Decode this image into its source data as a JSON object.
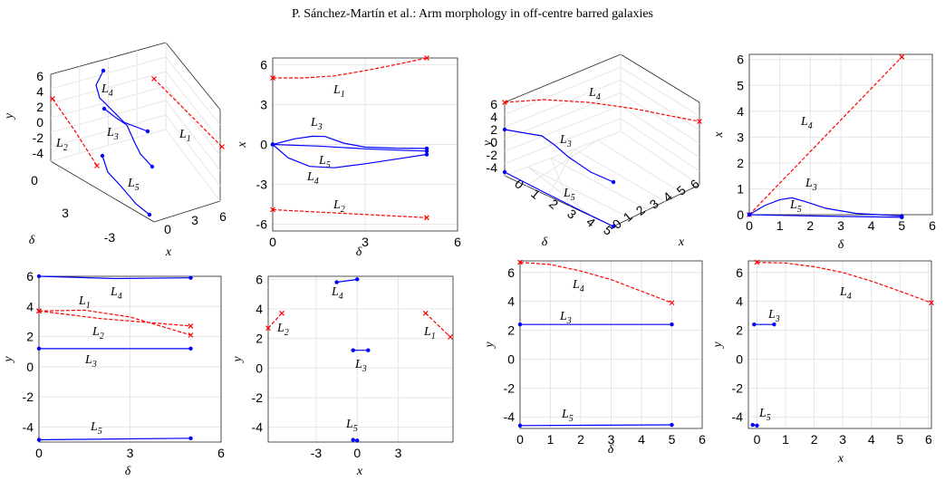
{
  "header": "P. Sánchez-Martín et al.: Arm morphology in off-centre barred galaxies",
  "colors": {
    "blue": "#0000ff",
    "red": "#ff0000",
    "grid": "#e6e6e6",
    "axis": "#262626"
  },
  "chart_data": [
    {
      "type": "line",
      "projection": "3d",
      "id": "p1",
      "xlabel": "x",
      "ylabel": "δ",
      "zlabel": "y",
      "xticks": [
        "-3",
        "0",
        "3",
        "6"
      ],
      "yticks": [
        "0",
        "3"
      ],
      "zticks": [
        "6",
        "4",
        "2",
        "0",
        "-2",
        "-4"
      ],
      "labels": [
        "L4",
        "L3",
        "L2",
        "L5",
        "L1"
      ]
    },
    {
      "type": "line",
      "id": "p2",
      "xlabel": "δ",
      "ylabel": "x",
      "xlim": [
        0,
        6
      ],
      "ylim": [
        -6.5,
        6.5
      ],
      "xticks": [
        "0",
        "3",
        "6"
      ],
      "yticks": [
        "6",
        "3",
        "0",
        "-3",
        "-6"
      ],
      "grid": true,
      "series": [
        {
          "name": "L1",
          "color": "red",
          "dash": true,
          "x": [
            0,
            1,
            2,
            3,
            4,
            5
          ],
          "y": [
            5.0,
            5.0,
            5.15,
            5.55,
            6.0,
            6.5
          ]
        },
        {
          "name": "L3",
          "color": "blue",
          "x": [
            0,
            0.7,
            1.3,
            1.7,
            2.3,
            3,
            4,
            5
          ],
          "y": [
            0,
            0.42,
            0.62,
            0.6,
            0.1,
            -0.2,
            -0.28,
            -0.3
          ]
        },
        {
          "name": "L5",
          "color": "blue",
          "x": [
            0,
            1.5,
            3,
            4,
            5
          ],
          "y": [
            0,
            -0.12,
            -0.33,
            -0.42,
            -0.5
          ]
        },
        {
          "name": "L4",
          "color": "blue",
          "x": [
            0,
            0.5,
            1.2,
            2,
            3,
            4,
            5
          ],
          "y": [
            0,
            -1.0,
            -1.65,
            -1.75,
            -1.45,
            -1.1,
            -0.75
          ]
        },
        {
          "name": "L2",
          "color": "red",
          "dash": true,
          "x": [
            0,
            2.5,
            5
          ],
          "y": [
            -4.9,
            -5.2,
            -5.5
          ]
        }
      ],
      "labels": [
        "L1",
        "L3",
        "L5",
        "L4",
        "L2"
      ]
    },
    {
      "type": "line",
      "projection": "3d",
      "id": "p3",
      "xlabel": "x",
      "ylabel": "δ",
      "zlabel": "y",
      "xticks": [
        "6",
        "5",
        "4",
        "3",
        "2",
        "1",
        "0"
      ],
      "yticks": [
        "0",
        "1",
        "2",
        "3",
        "4",
        "5"
      ],
      "zticks": [
        "6",
        "4",
        "2",
        "0",
        "-2",
        "-4"
      ],
      "labels": [
        "L4",
        "L3",
        "L5"
      ]
    },
    {
      "type": "line",
      "id": "p4",
      "xlabel": "δ",
      "ylabel": "x",
      "xlim": [
        0,
        6
      ],
      "ylim": [
        0,
        6.2
      ],
      "xticks": [
        "0",
        "1",
        "2",
        "3",
        "4",
        "5",
        "6"
      ],
      "yticks": [
        "0",
        "1",
        "2",
        "3",
        "4",
        "5",
        "6"
      ],
      "grid": true,
      "series": [
        {
          "name": "L4",
          "color": "red",
          "dash": true,
          "x": [
            0,
            5
          ],
          "y": [
            0,
            6.1
          ]
        },
        {
          "name": "L3",
          "color": "blue",
          "x": [
            0,
            0.5,
            1,
            1.4,
            1.8,
            2.5,
            3.5,
            5
          ],
          "y": [
            0,
            0.35,
            0.58,
            0.65,
            0.52,
            0.25,
            0.05,
            -0.05
          ]
        },
        {
          "name": "L5",
          "color": "blue",
          "x": [
            0,
            2,
            5
          ],
          "y": [
            0,
            -0.05,
            -0.1
          ]
        }
      ],
      "labels": [
        "L4",
        "L3",
        "L5"
      ]
    },
    {
      "type": "line",
      "id": "p5",
      "xlabel": "δ",
      "ylabel": "y",
      "xlim": [
        0,
        6
      ],
      "ylim": [
        -5,
        6
      ],
      "xticks": [
        "0",
        "3",
        "6"
      ],
      "yticks": [
        "6",
        "4",
        "2",
        "0",
        "-2",
        "-4"
      ],
      "grid": true,
      "series": [
        {
          "name": "L4",
          "color": "blue",
          "x": [
            0,
            2.5,
            5
          ],
          "y": [
            6.0,
            5.85,
            5.9
          ]
        },
        {
          "name": "L1",
          "color": "red",
          "dash": true,
          "x": [
            0,
            1.5,
            3,
            5
          ],
          "y": [
            3.7,
            3.75,
            3.3,
            2.1
          ]
        },
        {
          "name": "L2",
          "color": "red",
          "dash": true,
          "x": [
            0,
            2,
            5
          ],
          "y": [
            3.7,
            3.2,
            2.7
          ]
        },
        {
          "name": "L3",
          "color": "blue",
          "x": [
            0,
            5
          ],
          "y": [
            1.2,
            1.2
          ]
        },
        {
          "name": "L5",
          "color": "blue",
          "x": [
            0,
            5
          ],
          "y": [
            -4.85,
            -4.75
          ]
        }
      ],
      "labels": [
        "L4",
        "L1",
        "L2",
        "L3",
        "L5"
      ]
    },
    {
      "type": "line",
      "id": "p6",
      "xlabel": "x",
      "ylabel": "y",
      "xlim": [
        -6.5,
        7
      ],
      "ylim": [
        -5,
        6.2
      ],
      "xticks": [
        "-3",
        "0",
        "3"
      ],
      "yticks": [
        "6",
        "4",
        "2",
        "0",
        "-2",
        "-4"
      ],
      "grid": true,
      "series": [
        {
          "name": "L4",
          "color": "blue",
          "x": [
            -1.5,
            -0.3,
            0
          ],
          "y": [
            5.8,
            5.95,
            6.0
          ]
        },
        {
          "name": "L2",
          "color": "red",
          "dash": true,
          "x": [
            -6.5,
            -5.5
          ],
          "y": [
            2.7,
            3.7
          ]
        },
        {
          "name": "L1",
          "color": "red",
          "dash": true,
          "x": [
            5,
            6.8
          ],
          "y": [
            3.7,
            2.1
          ]
        },
        {
          "name": "L3",
          "color": "blue",
          "x": [
            -0.3,
            0.8
          ],
          "y": [
            1.2,
            1.2
          ]
        },
        {
          "name": "L5",
          "color": "blue",
          "x": [
            -0.3,
            0
          ],
          "y": [
            -4.85,
            -4.9
          ]
        }
      ],
      "labels": [
        "L4",
        "L2",
        "L1",
        "L3",
        "L5"
      ]
    },
    {
      "type": "line",
      "id": "p7",
      "xlabel": "δ",
      "ylabel": "y",
      "xlim": [
        0,
        6
      ],
      "ylim": [
        -4.8,
        6.8
      ],
      "xticks": [
        "0",
        "1",
        "2",
        "3",
        "4",
        "5",
        "6"
      ],
      "yticks": [
        "6",
        "4",
        "2",
        "0",
        "-2",
        "-4"
      ],
      "grid": true,
      "series": [
        {
          "name": "L4",
          "color": "red",
          "dash": true,
          "x": [
            0,
            1,
            2,
            3,
            4,
            5
          ],
          "y": [
            6.7,
            6.55,
            6.1,
            5.5,
            4.7,
            3.9
          ]
        },
        {
          "name": "L3",
          "color": "blue",
          "x": [
            0,
            5
          ],
          "y": [
            2.4,
            2.4
          ]
        },
        {
          "name": "L5",
          "color": "blue",
          "x": [
            0,
            5
          ],
          "y": [
            -4.6,
            -4.55
          ]
        }
      ],
      "labels": [
        "L4",
        "L3",
        "L5"
      ]
    },
    {
      "type": "line",
      "id": "p8",
      "xlabel": "x",
      "ylabel": "y",
      "xlim": [
        -0.3,
        6.1
      ],
      "ylim": [
        -4.8,
        6.8
      ],
      "xticks": [
        "0",
        "1",
        "2",
        "3",
        "4",
        "5",
        "6"
      ],
      "yticks": [
        "6",
        "4",
        "2",
        "0",
        "-2",
        "-4"
      ],
      "grid": true,
      "series": [
        {
          "name": "L4",
          "color": "red",
          "dash": true,
          "x": [
            0,
            1,
            2,
            3,
            4,
            5,
            6.1
          ],
          "y": [
            6.7,
            6.65,
            6.4,
            6.0,
            5.4,
            4.7,
            3.9
          ]
        },
        {
          "name": "L3",
          "color": "blue",
          "x": [
            -0.1,
            0.6
          ],
          "y": [
            2.4,
            2.4
          ]
        },
        {
          "name": "L5",
          "color": "blue",
          "x": [
            -0.15,
            0
          ],
          "y": [
            -4.55,
            -4.6
          ]
        }
      ],
      "labels": [
        "L4",
        "L3",
        "L5"
      ]
    }
  ]
}
